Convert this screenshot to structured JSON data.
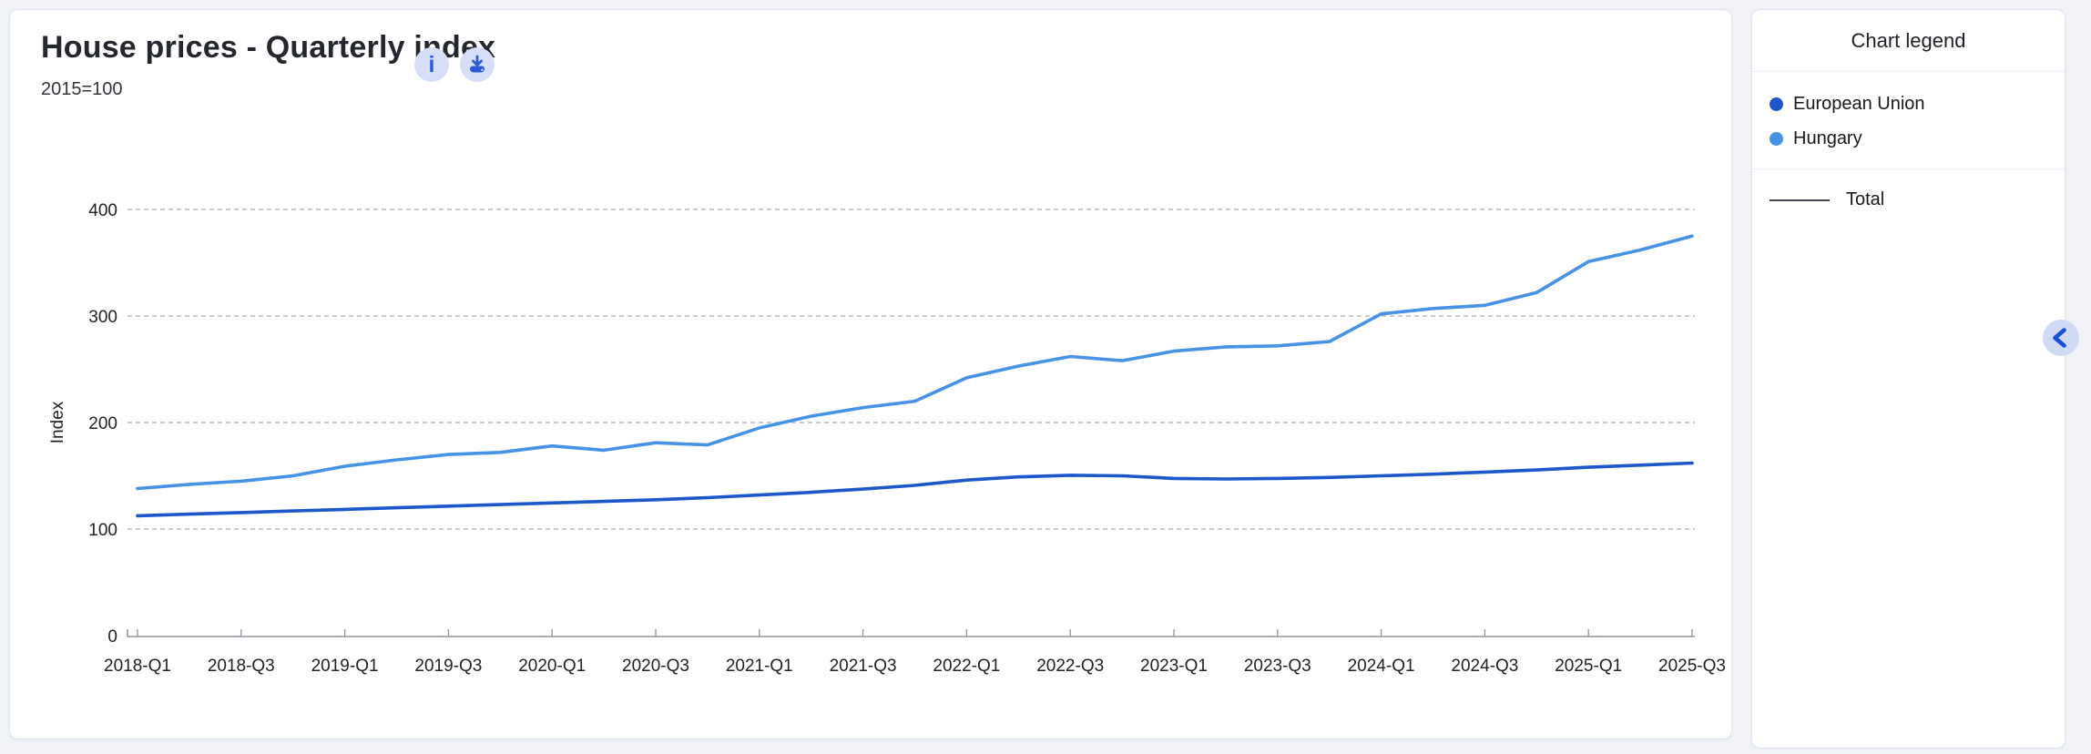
{
  "chart_card": {
    "title": "House prices - Quarterly index",
    "subtitle": "2015=100",
    "toolbar": {
      "info_icon": "info-circle",
      "download_icon": "download-circle"
    }
  },
  "legend_panel": {
    "title": "Chart legend",
    "items": [
      {
        "label": "European Union",
        "color": "#1d58cb"
      },
      {
        "label": "Hungary",
        "color": "#4693e5"
      }
    ],
    "line_item": {
      "label": "Total",
      "symbol": "line",
      "color": "#444a52"
    },
    "collapse_icon": "chevron-left"
  },
  "chart_data": {
    "type": "line",
    "title": "House prices - Quarterly index",
    "subtitle": "2015=100",
    "xlabel": "",
    "ylabel": "Index",
    "ylim": [
      0,
      400
    ],
    "yticks": [
      0,
      100,
      200,
      300,
      400
    ],
    "grid": "horizontal dashed",
    "legend_position": "right panel",
    "categories": [
      "2018-Q1",
      "2018-Q2",
      "2018-Q3",
      "2018-Q4",
      "2019-Q1",
      "2019-Q2",
      "2019-Q3",
      "2019-Q4",
      "2020-Q1",
      "2020-Q2",
      "2020-Q3",
      "2020-Q4",
      "2021-Q1",
      "2021-Q2",
      "2021-Q3",
      "2021-Q4",
      "2022-Q1",
      "2022-Q2",
      "2022-Q3",
      "2022-Q4",
      "2023-Q1",
      "2023-Q2",
      "2023-Q3",
      "2023-Q4",
      "2024-Q1",
      "2024-Q2",
      "2024-Q3",
      "2024-Q4",
      "2025-Q1",
      "2025-Q2",
      "2025-Q3"
    ],
    "x_tick_labels": [
      "2018-Q1",
      "2018-Q3",
      "2019-Q1",
      "2019-Q3",
      "2020-Q1",
      "2020-Q3",
      "2021-Q1",
      "2021-Q3",
      "2022-Q1",
      "2022-Q3",
      "2023-Q1",
      "2023-Q3",
      "2024-Q1",
      "2024-Q3",
      "2025-Q1",
      "2025-Q3"
    ],
    "series": [
      {
        "name": "European Union",
        "color": "#1d58cb",
        "values": [
          112.5,
          114,
          115.5,
          117,
          118.5,
          120,
          121.5,
          123,
          124.5,
          126,
          127.5,
          129.5,
          132,
          134.5,
          137.5,
          141,
          146,
          149,
          150.5,
          150,
          147.5,
          147,
          147.5,
          148.5,
          150,
          151.5,
          153.5,
          155.5,
          158,
          160,
          162
        ]
      },
      {
        "name": "Hungary",
        "color": "#4693e5",
        "values": [
          138,
          142,
          145,
          150,
          159,
          165,
          170,
          172,
          178,
          174,
          181,
          179,
          195,
          206,
          214,
          220,
          242,
          253,
          262,
          258,
          267,
          271,
          272,
          276,
          302,
          307,
          310,
          322,
          351,
          362,
          375
        ]
      }
    ]
  }
}
